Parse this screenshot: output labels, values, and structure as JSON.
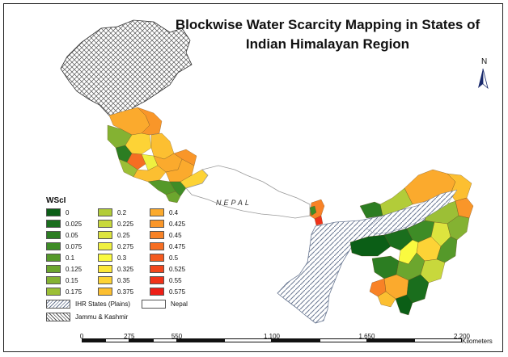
{
  "title": {
    "line1": "Blockwise Water Scarcity Mapping in States of",
    "line2": "Indian Himalayan Region"
  },
  "north_arrow": {
    "label": "N"
  },
  "map_labels": {
    "nepal": "NEPAL"
  },
  "legend": {
    "title": "WScI",
    "classes": [
      {
        "label": "0",
        "color": "#0b5e16"
      },
      {
        "label": "0.025",
        "color": "#1a6e1d"
      },
      {
        "label": "0.05",
        "color": "#2c7d22"
      },
      {
        "label": "0.075",
        "color": "#3e8c26"
      },
      {
        "label": "0.1",
        "color": "#55992a"
      },
      {
        "label": "0.125",
        "color": "#6ca62e"
      },
      {
        "label": "0.15",
        "color": "#84b232"
      },
      {
        "label": "0.175",
        "color": "#9cbf36"
      },
      {
        "label": "0.2",
        "color": "#b2cc39"
      },
      {
        "label": "0.225",
        "color": "#c8d83c"
      },
      {
        "label": "0.25",
        "color": "#dde43e"
      },
      {
        "label": "0.275",
        "color": "#eff040"
      },
      {
        "label": "0.3",
        "color": "#fafa3f"
      },
      {
        "label": "0.325",
        "color": "#fde83a"
      },
      {
        "label": "0.35",
        "color": "#fdd336"
      },
      {
        "label": "0.375",
        "color": "#fcbf31"
      },
      {
        "label": "0.4",
        "color": "#fbaa2d"
      },
      {
        "label": "0.425",
        "color": "#f99629"
      },
      {
        "label": "0.45",
        "color": "#f88226"
      },
      {
        "label": "0.475",
        "color": "#f66e22"
      },
      {
        "label": "0.5",
        "color": "#f45a1f"
      },
      {
        "label": "0.525",
        "color": "#f2461c"
      },
      {
        "label": "0.55",
        "color": "#f03219"
      },
      {
        "label": "0.575",
        "color": "#ed1e16"
      }
    ],
    "ihr_plains": "IHR States (Plains)",
    "nepal": "Nepal",
    "jammu_kashmir": "Jammu & Kashmir"
  },
  "scale_bar": {
    "ticks": [
      "0",
      "275",
      "550",
      "1,100",
      "1,650",
      "2,200"
    ],
    "tick_values": [
      0,
      275,
      550,
      1100,
      1650,
      2200
    ],
    "units": "Kilometers"
  }
}
